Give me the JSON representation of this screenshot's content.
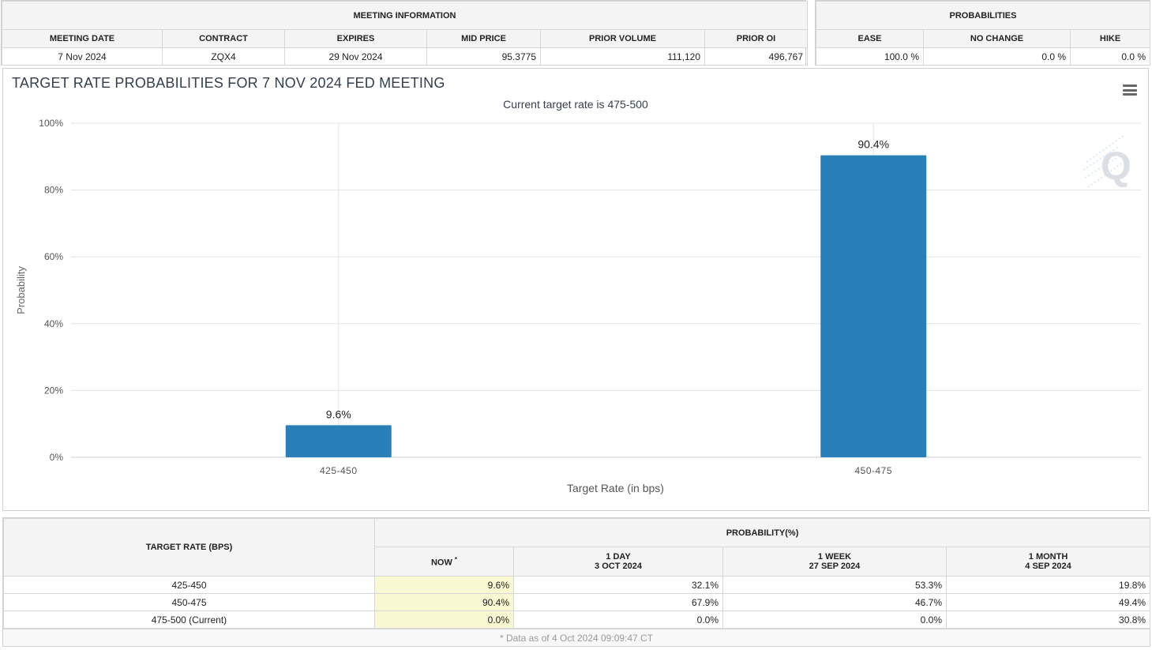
{
  "meeting_info": {
    "title": "MEETING INFORMATION",
    "columns": [
      "MEETING DATE",
      "CONTRACT",
      "EXPIRES",
      "MID PRICE",
      "PRIOR VOLUME",
      "PRIOR OI"
    ],
    "values": [
      "7 Nov 2024",
      "ZQX4",
      "29 Nov 2024",
      "95.3775",
      "111,120",
      "496,767"
    ]
  },
  "probabilities": {
    "title": "PROBABILITIES",
    "columns": [
      "EASE",
      "NO CHANGE",
      "HIKE"
    ],
    "values": [
      "100.0 %",
      "0.0 %",
      "0.0 %"
    ]
  },
  "chart_panel": {
    "menu_icon": "hamburger-menu-icon",
    "watermark_icon": "q-logo-watermark-icon"
  },
  "chart_data": {
    "type": "bar",
    "title": "TARGET RATE PROBABILITIES FOR 7 NOV 2024 FED MEETING",
    "subtitle": "Current target rate is 475-500",
    "xlabel": "Target Rate (in bps)",
    "ylabel": "Probability",
    "categories": [
      "425-450",
      "450-475"
    ],
    "values": [
      9.6,
      90.4
    ],
    "data_labels": [
      "9.6%",
      "90.4%"
    ],
    "ylim": [
      0,
      100
    ],
    "yticks": [
      "0%",
      "20%",
      "40%",
      "60%",
      "80%",
      "100%"
    ],
    "bar_color": "#2980b9",
    "grid": true
  },
  "prob_table": {
    "rate_header": "TARGET RATE (BPS)",
    "group_header": "PROBABILITY(%)",
    "now_label": "NOW",
    "now_marker": "*",
    "period_headers": [
      {
        "line1": "1 DAY",
        "line2": "3 OCT 2024"
      },
      {
        "line1": "1 WEEK",
        "line2": "27 SEP 2024"
      },
      {
        "line1": "1 MONTH",
        "line2": "4 SEP 2024"
      }
    ],
    "rows": [
      {
        "rate": "425-450",
        "now": "9.6%",
        "day": "32.1%",
        "week": "53.3%",
        "month": "19.8%"
      },
      {
        "rate": "450-475",
        "now": "90.4%",
        "day": "67.9%",
        "week": "46.7%",
        "month": "49.4%"
      },
      {
        "rate": "475-500 (Current)",
        "now": "0.0%",
        "day": "0.0%",
        "week": "0.0%",
        "month": "30.8%"
      }
    ],
    "footnote": "* Data as of 4 Oct 2024 09:09:47 CT"
  }
}
